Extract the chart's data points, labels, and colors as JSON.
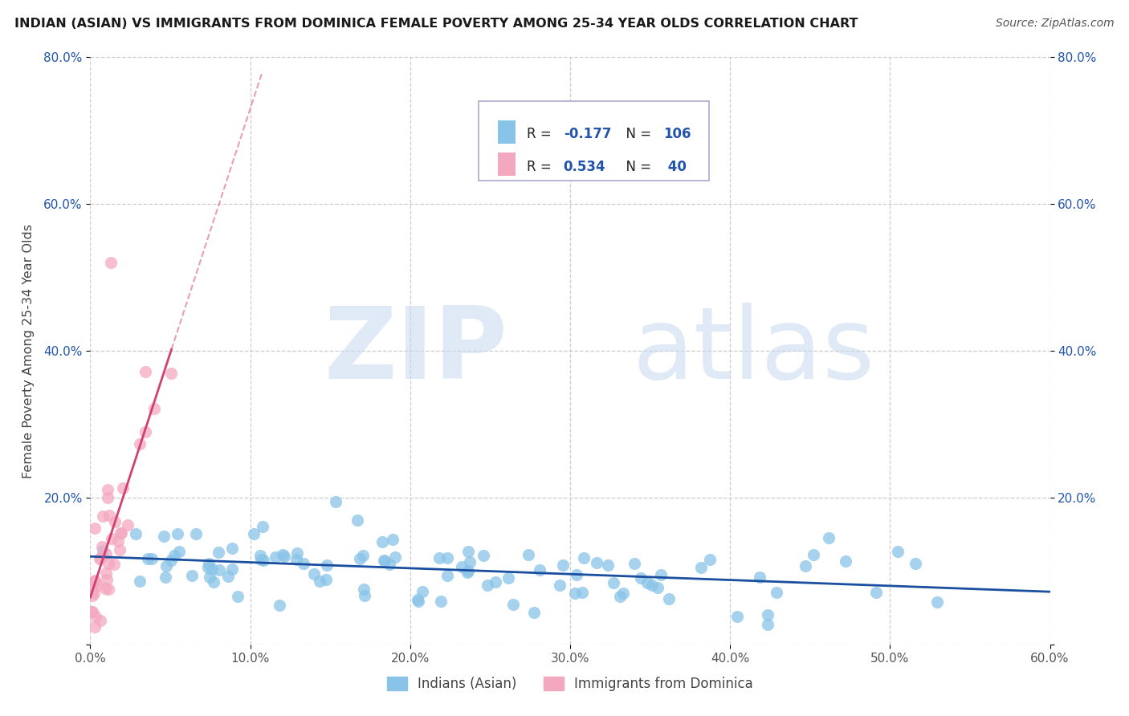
{
  "title": "INDIAN (ASIAN) VS IMMIGRANTS FROM DOMINICA FEMALE POVERTY AMONG 25-34 YEAR OLDS CORRELATION CHART",
  "source": "Source: ZipAtlas.com",
  "ylabel": "Female Poverty Among 25-34 Year Olds",
  "xlim": [
    0.0,
    0.6
  ],
  "ylim": [
    0.0,
    0.8
  ],
  "xtick_vals": [
    0.0,
    0.1,
    0.2,
    0.3,
    0.4,
    0.5,
    0.6
  ],
  "ytick_vals": [
    0.0,
    0.2,
    0.4,
    0.6,
    0.8
  ],
  "xtick_labels": [
    "0.0%",
    "10.0%",
    "20.0%",
    "30.0%",
    "40.0%",
    "50.0%",
    "60.0%"
  ],
  "ytick_labels": [
    "",
    "20.0%",
    "40.0%",
    "60.0%",
    "80.0%"
  ],
  "background_color": "#ffffff",
  "grid_color": "#cccccc",
  "blue_color": "#89c4e8",
  "pink_color": "#f4a8c0",
  "blue_line_color": "#1a4fa0",
  "pink_line_color": "#d04070",
  "R_blue": -0.177,
  "N_blue": 106,
  "R_pink": 0.534,
  "N_pink": 40,
  "legend_label_blue": "Indians (Asian)",
  "legend_label_pink": "Immigrants from Dominica",
  "watermark_zip": "ZIP",
  "watermark_atlas": "atlas",
  "marker_size": 120
}
